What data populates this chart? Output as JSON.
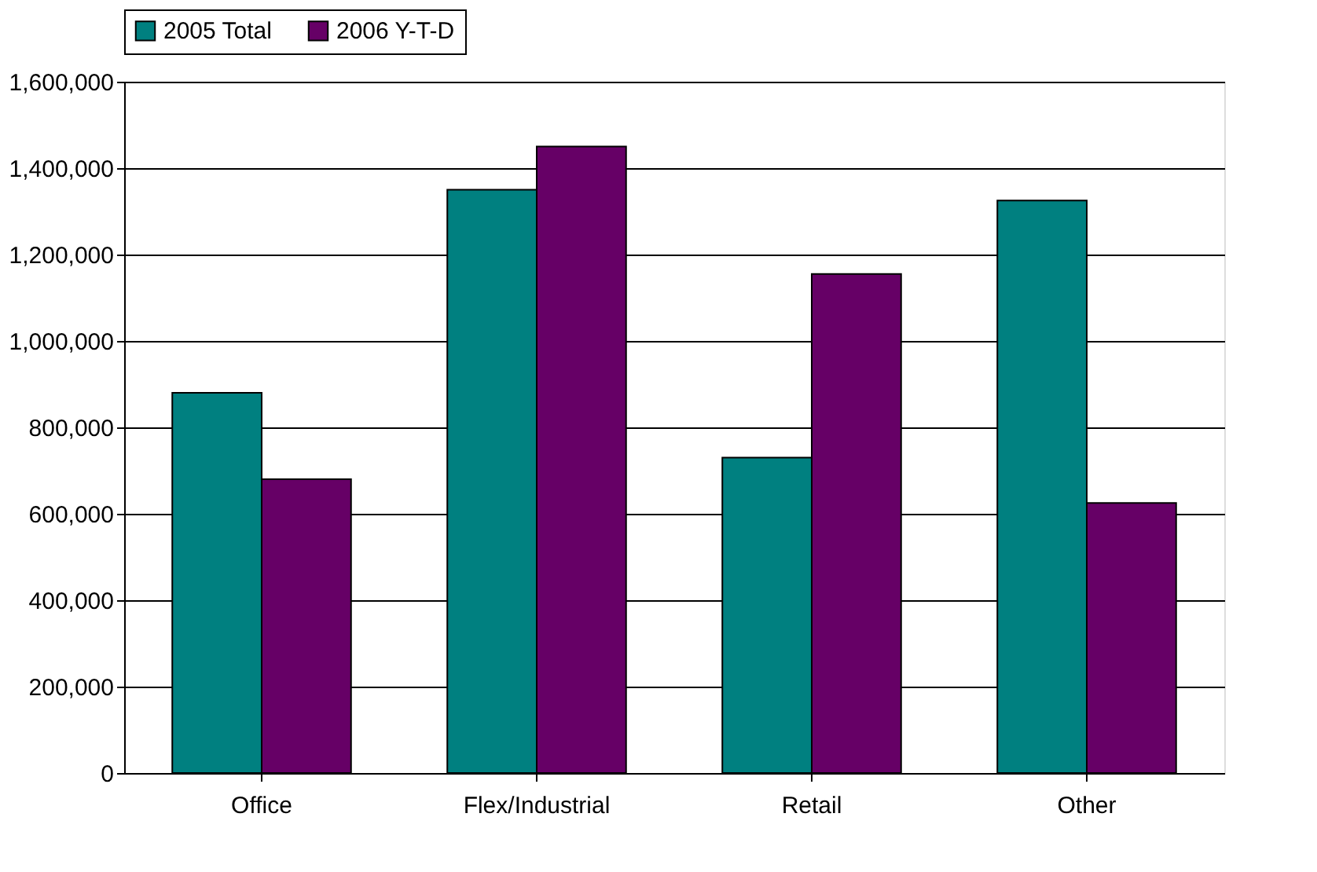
{
  "chart_data": {
    "type": "bar",
    "categories": [
      "Office",
      "Flex/Industrial",
      "Retail",
      "Other"
    ],
    "series": [
      {
        "name": "2005 Total",
        "color": "#008080",
        "values": [
          880000,
          1350000,
          730000,
          1325000
        ]
      },
      {
        "name": "2006 Y-T-D",
        "color": "#660066",
        "values": [
          680000,
          1450000,
          1155000,
          625000
        ]
      }
    ],
    "ylim": [
      0,
      1600000
    ],
    "yticks": [
      {
        "value": 0,
        "label": "0"
      },
      {
        "value": 200000,
        "label": "200,000"
      },
      {
        "value": 400000,
        "label": "400,000"
      },
      {
        "value": 600000,
        "label": "600,000"
      },
      {
        "value": 800000,
        "label": "800,000"
      },
      {
        "value": 1000000,
        "label": "1,000,000"
      },
      {
        "value": 1200000,
        "label": "1,200,000"
      },
      {
        "value": 1400000,
        "label": "1,400,000"
      },
      {
        "value": 1600000,
        "label": "1,600,000"
      }
    ],
    "grid": "y",
    "legend": "top"
  }
}
